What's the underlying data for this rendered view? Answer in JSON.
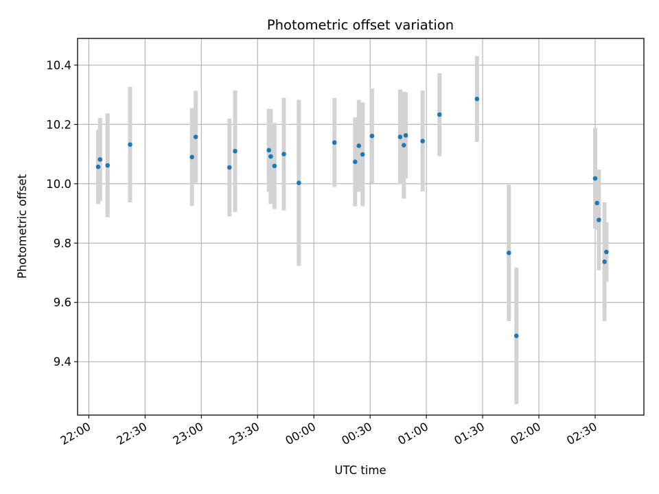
{
  "chart_data": {
    "type": "scatter",
    "title": "Photometric offset variation",
    "xlabel": "UTC time",
    "ylabel": "Photometric offset",
    "x_tick_labels": [
      "22:00",
      "22:30",
      "23:00",
      "23:30",
      "00:00",
      "00:30",
      "01:00",
      "01:30",
      "02:00",
      "02:30"
    ],
    "y_tick_labels": [
      "9.4",
      "9.6",
      "9.8",
      "10.0",
      "10.2",
      "10.4"
    ],
    "y_ticks": [
      9.4,
      9.6,
      9.8,
      10.0,
      10.2,
      10.4
    ],
    "xlim": [
      "21:54",
      "02:56"
    ],
    "ylim": [
      9.22,
      10.49
    ],
    "grid": true,
    "marker_color": "#1f77b4",
    "errorbar_color": "#d3d3d3",
    "series": [
      {
        "x": [
          "22:05",
          "22:06",
          "22:10",
          "22:22",
          "22:55",
          "22:57",
          "23:15",
          "23:18",
          "23:36",
          "23:37",
          "23:39",
          "23:44",
          "23:52",
          "00:11",
          "00:22",
          "00:24",
          "00:26",
          "00:31",
          "00:46",
          "00:48",
          "00:49",
          "00:58",
          "01:07",
          "01:27",
          "01:44",
          "01:48",
          "02:30",
          "02:31",
          "02:32",
          "02:35",
          "02:36"
        ],
        "y": [
          10.057,
          10.082,
          10.062,
          10.132,
          10.09,
          10.158,
          10.055,
          10.11,
          10.113,
          10.092,
          10.06,
          10.1,
          10.003,
          10.139,
          10.074,
          10.128,
          10.099,
          10.161,
          10.158,
          10.13,
          10.163,
          10.144,
          10.233,
          10.286,
          9.767,
          9.487,
          10.018,
          9.935,
          9.878,
          9.737,
          9.77
        ],
        "yerr": [
          0.125,
          0.14,
          0.175,
          0.195,
          0.165,
          0.155,
          0.165,
          0.205,
          0.14,
          0.16,
          0.145,
          0.19,
          0.28,
          0.15,
          0.15,
          0.155,
          0.175,
          0.16,
          0.16,
          0.18,
          0.145,
          0.17,
          0.14,
          0.145,
          0.23,
          0.23,
          0.17,
          0.09,
          0.17,
          0.2,
          0.1
        ]
      }
    ]
  }
}
